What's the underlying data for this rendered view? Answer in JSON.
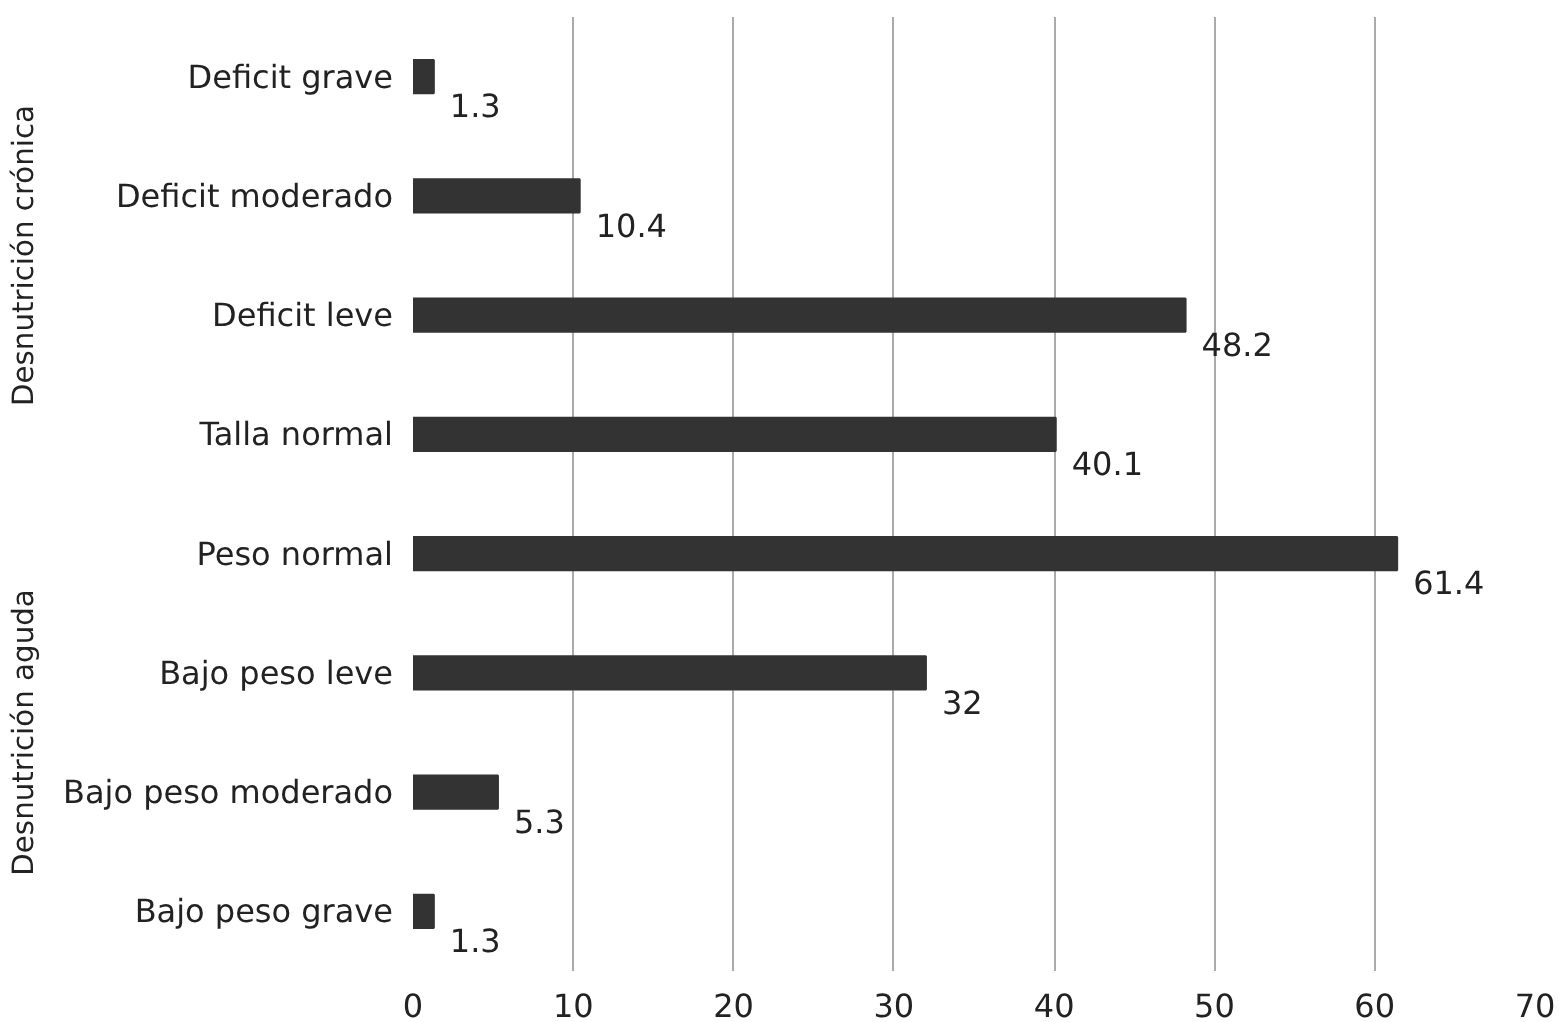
{
  "chart_data": {
    "type": "bar",
    "orientation": "horizontal",
    "categories": [
      "Deficit grave",
      "Deficit moderado",
      "Deficit leve",
      "Talla normal",
      "Peso normal",
      "Bajo peso leve",
      "Bajo peso moderado",
      "Bajo peso grave"
    ],
    "values": [
      1.3,
      10.4,
      48.2,
      40.1,
      61.4,
      32,
      5.3,
      1.3
    ],
    "color": "#333333",
    "xlim": [
      0,
      70
    ],
    "xticks": [
      0,
      10,
      20,
      30,
      40,
      50,
      60,
      70
    ],
    "grid": "x",
    "data_labels": true,
    "annotations": [
      "Desnutrición crónica",
      "Desnutrición aguda"
    ]
  }
}
